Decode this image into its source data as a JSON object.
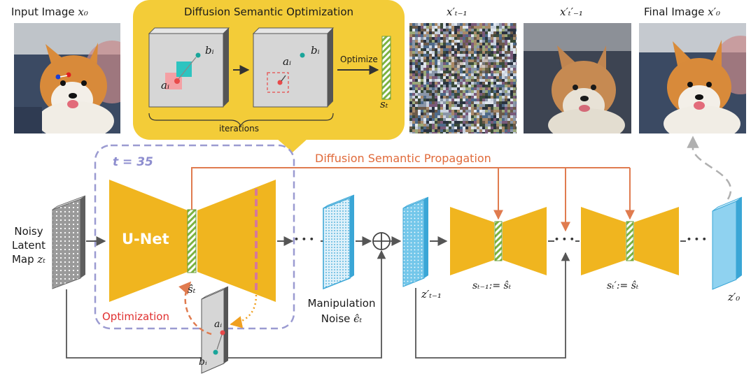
{
  "captions": {
    "input_image": "Input Image",
    "input_image_math": "x₀",
    "x_t_minus_1": "x′ₜ₋₁",
    "x_tprime_minus_1": "x′ₜ′₋₁",
    "final_image": "Final Image",
    "final_image_math": "x′₀"
  },
  "callout": {
    "title": "Diffusion Semantic Optimization",
    "a_label": "aᵢ",
    "b_label": "bᵢ",
    "optimize_label": "Optimize",
    "s_label": "sₜ",
    "iterations_label": "iterations"
  },
  "pipeline": {
    "timestep_label": "t = 35",
    "propagation_label": "Diffusion Semantic Propagation",
    "unet_label": "U-Net",
    "noisy_latent_line1": "Noisy",
    "noisy_latent_line2": "Latent",
    "noisy_latent_line3": "Map",
    "noisy_latent_math": "zₜ",
    "s_hat_label": "ŝₜ",
    "optimization_label": "Optimization",
    "a_label": "aᵢ",
    "b_label": "bᵢ",
    "manipulation_line1": "Manipulation",
    "manipulation_line2": "Noise",
    "manipulation_math": "ϵ̂ₜ",
    "z_t_minus_1": "z′ₜ₋₁",
    "s_t_minus_1_assign": "sₜ₋₁:= ŝₜ",
    "s_tprime_assign": "sₜ′:= ŝₜ",
    "z_0": "z′₀",
    "dots": "• • •"
  },
  "colors": {
    "unet_yellow": "#f0b51f",
    "callout_yellow": "#f3cc38",
    "orange_arrow": "#e07b4f",
    "orange_text": "#e06a3a",
    "dashed_box": "#9b9bd1",
    "latent_blue": "#74c7ea",
    "latent_blue_dark": "#3aa6d6",
    "noise_gray": "#9a9a9a",
    "stripe_green": "#7cb341",
    "red_text": "#e03030",
    "pink_bar": "#d6789a",
    "dotted_orange": "#f0a020",
    "teal_point": "#1aa59a",
    "red_point": "#e84a4a"
  }
}
